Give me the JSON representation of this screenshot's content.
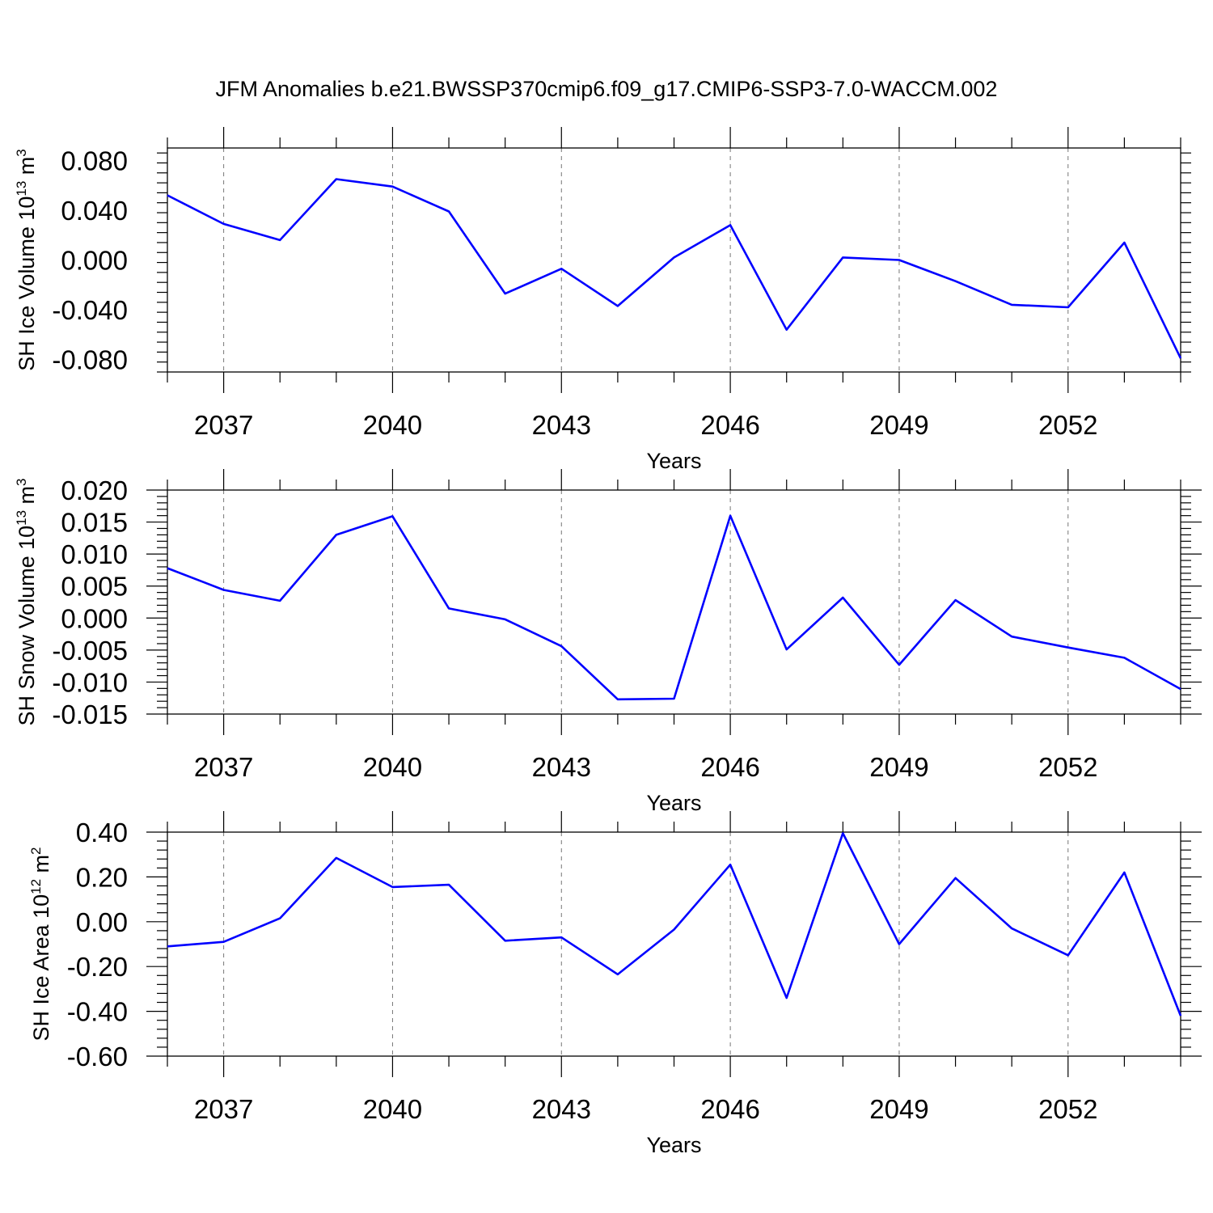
{
  "figure": {
    "title": "JFM Anomalies b.e21.BWSSP370cmip6.f09_g17.CMIP6-SSP3-7.0-WACCM.002"
  },
  "colors": {
    "line": "#0000ff",
    "axis": "#000000",
    "grid": "#777777"
  },
  "chart_data": [
    {
      "type": "line",
      "xlabel": "Years",
      "ylabel": "SH Ice Volume 10",
      "ylabel_exponent": "13",
      "ylabel_unit": "m",
      "ylabel_unit_exponent": "3",
      "xlim": [
        2036,
        2054
      ],
      "ylim": [
        -0.09,
        0.09
      ],
      "y_ticks": [
        0.08,
        0.04,
        0.0,
        -0.04,
        -0.08
      ],
      "y_tick_labels": [
        "0.080",
        "0.040",
        "0.000",
        "-0.040",
        "-0.080"
      ],
      "x_ticks": [
        2037,
        2040,
        2043,
        2046,
        2049,
        2052
      ],
      "x_tick_labels": [
        "2037",
        "2040",
        "2043",
        "2046",
        "2049",
        "2052"
      ],
      "grid": "vertical dashed at labeled years",
      "x": [
        2036,
        2037,
        2038,
        2039,
        2040,
        2041,
        2042,
        2043,
        2044,
        2045,
        2046,
        2047,
        2048,
        2049,
        2050,
        2051,
        2052,
        2053,
        2054
      ],
      "values": [
        0.052,
        0.029,
        0.016,
        0.065,
        0.059,
        0.039,
        -0.027,
        -0.007,
        -0.037,
        0.002,
        0.028,
        -0.056,
        0.002,
        0.0,
        -0.017,
        -0.036,
        -0.038,
        0.014,
        -0.079
      ]
    },
    {
      "type": "line",
      "xlabel": "Years",
      "ylabel": "SH Snow Volume 10",
      "ylabel_exponent": "13",
      "ylabel_unit": "m",
      "ylabel_unit_exponent": "3",
      "xlim": [
        2036,
        2054
      ],
      "ylim": [
        -0.015,
        0.02
      ],
      "y_ticks": [
        0.02,
        0.015,
        0.01,
        0.005,
        0.0,
        -0.005,
        -0.01,
        -0.015
      ],
      "y_tick_labels": [
        "0.020",
        "0.015",
        "0.010",
        "0.005",
        "0.000",
        "-0.005",
        "-0.010",
        "-0.015"
      ],
      "x_ticks": [
        2037,
        2040,
        2043,
        2046,
        2049,
        2052
      ],
      "x_tick_labels": [
        "2037",
        "2040",
        "2043",
        "2046",
        "2049",
        "2052"
      ],
      "grid": "vertical dashed at labeled years",
      "x": [
        2036,
        2037,
        2038,
        2039,
        2040,
        2041,
        2042,
        2043,
        2044,
        2045,
        2046,
        2047,
        2048,
        2049,
        2050,
        2051,
        2052,
        2053,
        2054
      ],
      "values": [
        0.0078,
        0.0044,
        0.0027,
        0.013,
        0.0159,
        0.0015,
        -0.0002,
        -0.0044,
        -0.0127,
        -0.0126,
        0.016,
        -0.0049,
        0.0032,
        -0.0073,
        0.0028,
        -0.0029,
        -0.0046,
        -0.0062,
        -0.0111
      ]
    },
    {
      "type": "line",
      "xlabel": "Years",
      "ylabel": "SH Ice Area 10",
      "ylabel_exponent": "12",
      "ylabel_unit": "m",
      "ylabel_unit_exponent": "2",
      "xlim": [
        2036,
        2054
      ],
      "ylim": [
        -0.6,
        0.4
      ],
      "y_ticks": [
        0.4,
        0.2,
        0.0,
        -0.2,
        -0.4,
        -0.6
      ],
      "y_tick_labels": [
        "0.40",
        "0.20",
        "0.00",
        "-0.20",
        "-0.40",
        "-0.60"
      ],
      "x_ticks": [
        2037,
        2040,
        2043,
        2046,
        2049,
        2052
      ],
      "x_tick_labels": [
        "2037",
        "2040",
        "2043",
        "2046",
        "2049",
        "2052"
      ],
      "grid": "vertical dashed at labeled years",
      "x": [
        2036,
        2037,
        2038,
        2039,
        2040,
        2041,
        2042,
        2043,
        2044,
        2045,
        2046,
        2047,
        2048,
        2049,
        2050,
        2051,
        2052,
        2053,
        2054
      ],
      "values": [
        -0.11,
        -0.09,
        0.015,
        0.285,
        0.155,
        0.165,
        -0.085,
        -0.07,
        -0.235,
        -0.035,
        0.255,
        -0.34,
        0.395,
        -0.1,
        0.195,
        -0.03,
        -0.15,
        0.22,
        -0.42
      ]
    }
  ]
}
